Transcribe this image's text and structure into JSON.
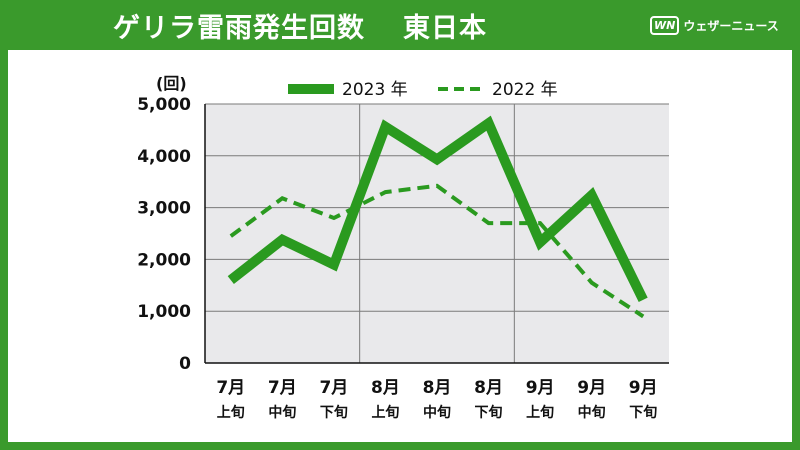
{
  "header": {
    "title": "ゲリラ雷雨発生回数",
    "region": "東日本",
    "logo_mark": "WN",
    "logo_text": "ウェザーニュース"
  },
  "colors": {
    "background": "#3a9a2c",
    "plot_area": "#e9e9eb",
    "series": "#2a9a1f"
  },
  "chart_data": {
    "type": "line",
    "unit_label": "(回)",
    "categories": [
      {
        "month": "7月",
        "period": "上旬"
      },
      {
        "month": "7月",
        "period": "中旬"
      },
      {
        "month": "7月",
        "period": "下旬"
      },
      {
        "month": "8月",
        "period": "上旬"
      },
      {
        "month": "8月",
        "period": "中旬"
      },
      {
        "month": "8月",
        "period": "下旬"
      },
      {
        "month": "9月",
        "period": "上旬"
      },
      {
        "month": "9月",
        "period": "中旬"
      },
      {
        "month": "9月",
        "period": "下旬"
      }
    ],
    "series": [
      {
        "name": "2023 年",
        "style": "solid",
        "values": [
          1600,
          2380,
          1900,
          4560,
          3930,
          4630,
          2330,
          3240,
          1220
        ]
      },
      {
        "name": "2022 年",
        "style": "dashed",
        "values": [
          2450,
          3180,
          2800,
          3300,
          3420,
          2700,
          2700,
          1550,
          900
        ]
      }
    ],
    "ylim": [
      0,
      5000
    ],
    "yticks": [
      "0",
      "1,000",
      "2,000",
      "3,000",
      "4,000",
      "5,000"
    ],
    "ytick_values": [
      0,
      1000,
      2000,
      3000,
      4000,
      5000
    ],
    "grid": true,
    "legend_position": "top"
  }
}
